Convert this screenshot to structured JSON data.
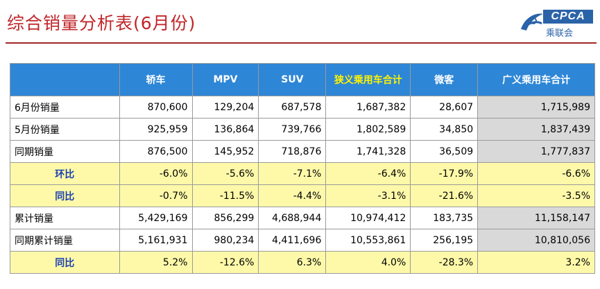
{
  "title": "综合销量分析表(6月份)",
  "logo": {
    "brand": "CPCA",
    "cn": "乘联会",
    "colors": {
      "brand": "#2b63a8"
    }
  },
  "table": {
    "headers": [
      "",
      "轿车",
      "MPV",
      "SUV",
      "狭义乘用车合计",
      "微客",
      "广义乘用车合计"
    ],
    "rows": [
      {
        "label": "6月份销量",
        "values": [
          "870,600",
          "129,204",
          "687,578",
          "1,687,382",
          "28,607",
          "1,715,989"
        ],
        "highlight": false
      },
      {
        "label": "5月份销量",
        "values": [
          "925,959",
          "136,864",
          "739,766",
          "1,802,589",
          "34,850",
          "1,837,439"
        ],
        "highlight": false
      },
      {
        "label": "同期销量",
        "values": [
          "876,500",
          "145,952",
          "718,876",
          "1,741,328",
          "36,509",
          "1,777,837"
        ],
        "highlight": false
      },
      {
        "label": "环比",
        "values": [
          "-6.0%",
          "-5.6%",
          "-7.1%",
          "-6.4%",
          "-17.9%",
          "-6.6%"
        ],
        "highlight": true
      },
      {
        "label": "同比",
        "values": [
          "-0.7%",
          "-11.5%",
          "-4.4%",
          "-3.1%",
          "-21.6%",
          "-3.5%"
        ],
        "highlight": true
      },
      {
        "label": "累计销量",
        "values": [
          "5,429,169",
          "856,299",
          "4,688,944",
          "10,974,412",
          "183,735",
          "11,158,147"
        ],
        "highlight": false
      },
      {
        "label": "同期累计销量",
        "values": [
          "5,161,931",
          "980,234",
          "4,411,696",
          "10,553,861",
          "256,195",
          "10,810,056"
        ],
        "highlight": false
      },
      {
        "label": "同比",
        "values": [
          "5.2%",
          "-12.6%",
          "6.3%",
          "4.0%",
          "-28.3%",
          "3.2%"
        ],
        "highlight": true
      }
    ],
    "colors": {
      "header": "#2e86d6",
      "highlight_row": "#fdf9a9",
      "accent_header_text": "#fff200",
      "total_col": "#d9d9d9"
    }
  }
}
